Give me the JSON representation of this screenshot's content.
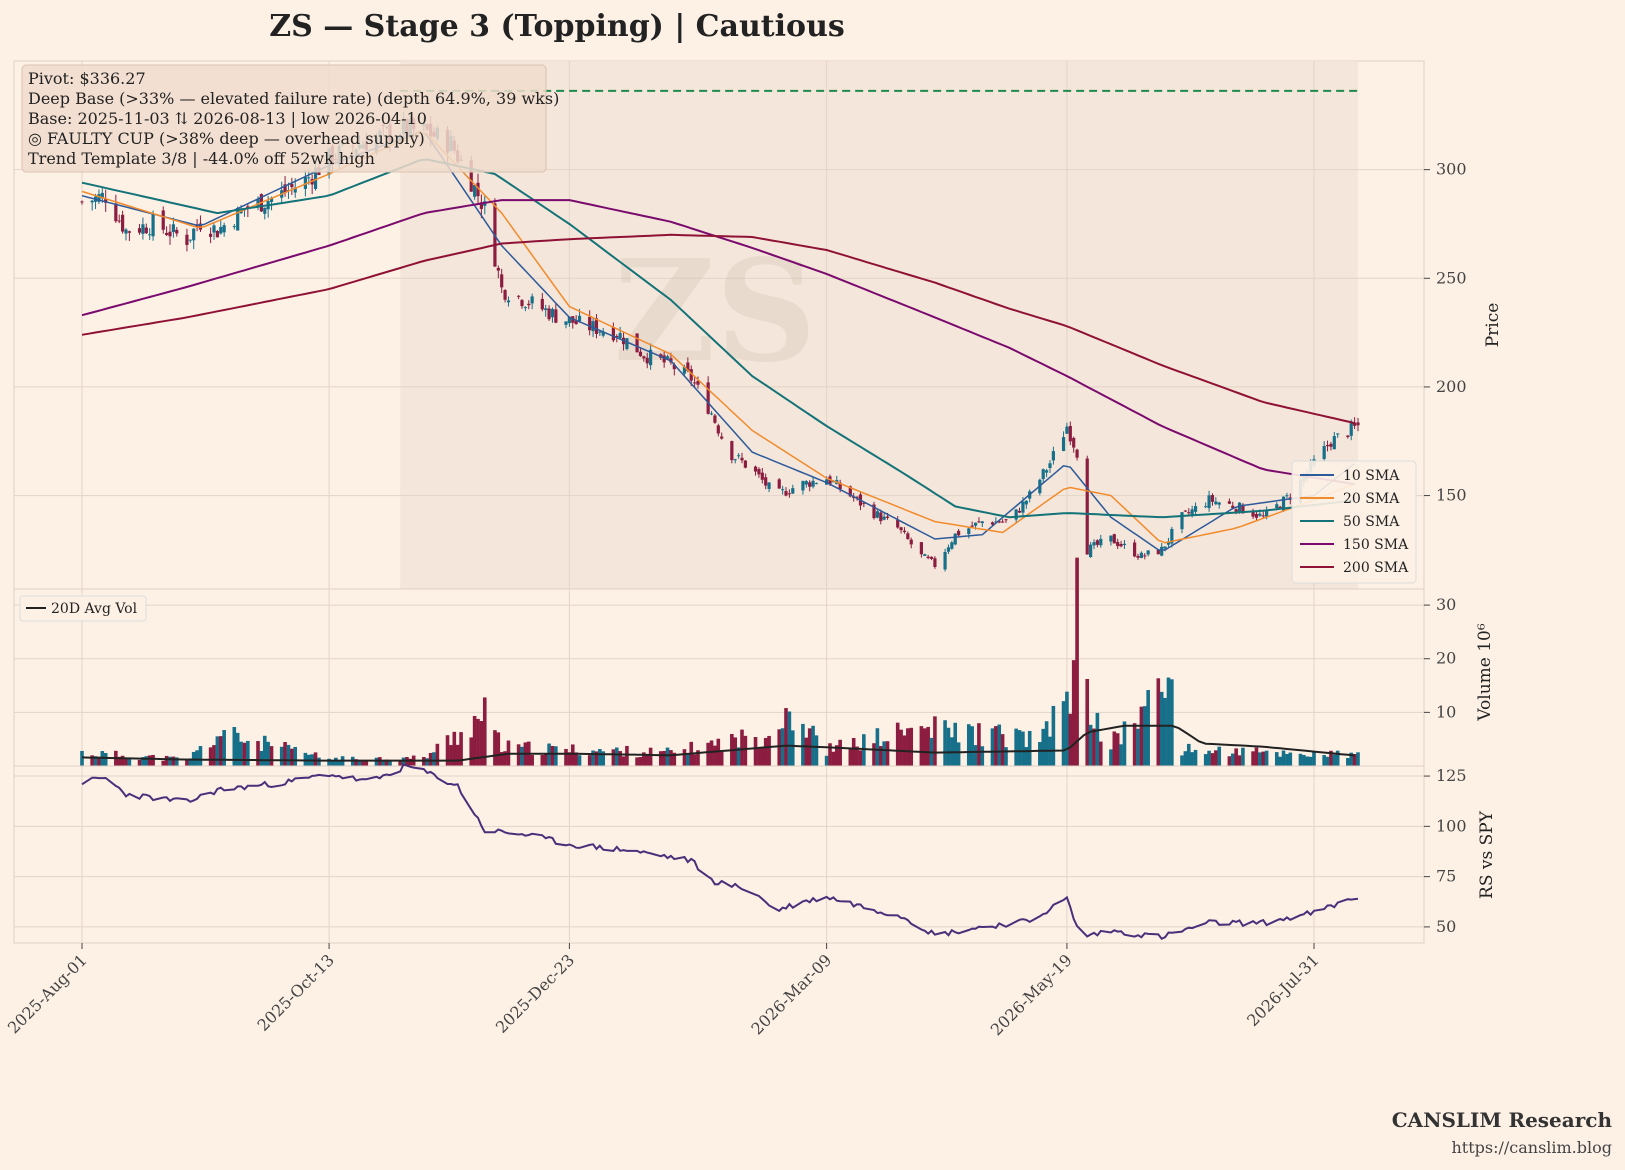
{
  "title": "ZS  —  Stage 3 (Topping)  |  Cautious",
  "watermark": "ZS",
  "colors": {
    "background": "#fdf1e6",
    "panel": "#fdf1e6",
    "base_shade": "#f3e4d8",
    "grid": "#e3d3c8",
    "up": "#17708a",
    "down": "#8c1d40",
    "pivot": "#1e8a4c",
    "sma10": "#2c5a9a",
    "sma20": "#f28b2c",
    "sma50": "#137378",
    "sma150": "#7a0a6e",
    "sma200": "#8f1236",
    "avgvol": "#222222",
    "rs": "#4a2f7a"
  },
  "info_box": {
    "lines": [
      "Pivot: $336.27",
      "Deep Base (>33% — elevated failure rate)  (depth 64.9%, 39 wks)",
      "Base: 2025-11-03 ⇅ 2026-08-13  |  low 2026-04-10",
      "◎ FAULTY CUP (>38% deep — overhead supply)",
      "Trend Template 3/8  |  -44.0% off 52wk high"
    ]
  },
  "footer": {
    "brand": "CANSLIM Research",
    "url": "https://canslim.blog"
  },
  "chart_data": [
    {
      "type": "candlestick",
      "panel": "price",
      "ylabel": "Price",
      "ylim": [
        107,
        350
      ],
      "yticks": [
        150,
        200,
        250,
        300
      ],
      "x_dates": [
        "2025-Aug-01",
        "2025-Oct-13",
        "2025-Dec-23",
        "2026-Mar-09",
        "2026-May-19",
        "2026-Jul-31"
      ],
      "pivot": 336.27,
      "base_start": "2025-11-03",
      "base_end": "2026-08-13",
      "base_low_date": "2026-04-10",
      "close_keypoints": [
        [
          "2025-08-01",
          285
        ],
        [
          "2025-08-08",
          288
        ],
        [
          "2025-08-14",
          272
        ],
        [
          "2025-08-22",
          275
        ],
        [
          "2025-09-01",
          268
        ],
        [
          "2025-09-05",
          276
        ],
        [
          "2025-09-10",
          272
        ],
        [
          "2025-09-18",
          282
        ],
        [
          "2025-09-28",
          288
        ],
        [
          "2025-10-06",
          295
        ],
        [
          "2025-10-13",
          305
        ],
        [
          "2025-10-22",
          312
        ],
        [
          "2025-11-02",
          318
        ],
        [
          "2025-11-10",
          318
        ],
        [
          "2025-11-18",
          312
        ],
        [
          "2025-11-24",
          295
        ],
        [
          "2025-11-28",
          282
        ],
        [
          "2025-12-03",
          245
        ],
        [
          "2025-12-10",
          240
        ],
        [
          "2025-12-20",
          232
        ],
        [
          "2025-12-28",
          228
        ],
        [
          "2026-01-06",
          225
        ],
        [
          "2026-01-14",
          215
        ],
        [
          "2026-01-22",
          210
        ],
        [
          "2026-01-28",
          204
        ],
        [
          "2026-02-03",
          188
        ],
        [
          "2026-02-08",
          170
        ],
        [
          "2026-02-15",
          162
        ],
        [
          "2026-02-22",
          150
        ],
        [
          "2026-03-01",
          155
        ],
        [
          "2026-03-09",
          158
        ],
        [
          "2026-03-16",
          150
        ],
        [
          "2026-03-23",
          142
        ],
        [
          "2026-03-30",
          135
        ],
        [
          "2026-04-06",
          122
        ],
        [
          "2026-04-10",
          118
        ],
        [
          "2026-04-16",
          132
        ],
        [
          "2026-04-24",
          138
        ],
        [
          "2026-05-02",
          138
        ],
        [
          "2026-05-08",
          150
        ],
        [
          "2026-05-14",
          165
        ],
        [
          "2026-05-19",
          182
        ],
        [
          "2026-05-22",
          170
        ],
        [
          "2026-05-25",
          125
        ],
        [
          "2026-06-01",
          130
        ],
        [
          "2026-06-10",
          122
        ],
        [
          "2026-06-16",
          125
        ],
        [
          "2026-06-22",
          140
        ],
        [
          "2026-06-30",
          148
        ],
        [
          "2026-07-08",
          145
        ],
        [
          "2026-07-16",
          140
        ],
        [
          "2026-07-24",
          150
        ],
        [
          "2026-07-31",
          165
        ],
        [
          "2026-08-05",
          175
        ],
        [
          "2026-08-13",
          182
        ]
      ],
      "sma": [
        {
          "name": "10 SMA",
          "key": "sma10",
          "points": [
            [
              "2025-08-01",
              288
            ],
            [
              "2025-09-05",
              274
            ],
            [
              "2025-10-13",
              302
            ],
            [
              "2025-11-10",
              318
            ],
            [
              "2025-12-03",
              265
            ],
            [
              "2025-12-23",
              232
            ],
            [
              "2026-01-22",
              212
            ],
            [
              "2026-02-15",
              170
            ],
            [
              "2026-03-09",
              156
            ],
            [
              "2026-04-10",
              130
            ],
            [
              "2026-04-24",
              132
            ],
            [
              "2026-05-19",
              165
            ],
            [
              "2026-06-01",
              140
            ],
            [
              "2026-06-16",
              124
            ],
            [
              "2026-07-08",
              145
            ],
            [
              "2026-07-31",
              150
            ],
            [
              "2026-08-13",
              166
            ]
          ]
        },
        {
          "name": "20 SMA",
          "key": "sma20",
          "points": [
            [
              "2025-08-01",
              290
            ],
            [
              "2025-09-05",
              273
            ],
            [
              "2025-10-13",
              298
            ],
            [
              "2025-11-10",
              318
            ],
            [
              "2025-12-03",
              280
            ],
            [
              "2025-12-23",
              237
            ],
            [
              "2026-01-22",
              215
            ],
            [
              "2026-02-15",
              180
            ],
            [
              "2026-03-09",
              158
            ],
            [
              "2026-04-10",
              138
            ],
            [
              "2026-04-30",
              133
            ],
            [
              "2026-05-19",
              154
            ],
            [
              "2026-06-01",
              150
            ],
            [
              "2026-06-16",
              128
            ],
            [
              "2026-07-08",
              135
            ],
            [
              "2026-07-31",
              148
            ],
            [
              "2026-08-13",
              156
            ]
          ]
        },
        {
          "name": "50 SMA",
          "key": "sma50",
          "points": [
            [
              "2025-08-01",
              294
            ],
            [
              "2025-09-10",
              280
            ],
            [
              "2025-10-13",
              288
            ],
            [
              "2025-11-10",
              305
            ],
            [
              "2025-12-01",
              298
            ],
            [
              "2025-12-23",
              275
            ],
            [
              "2026-01-22",
              240
            ],
            [
              "2026-02-15",
              205
            ],
            [
              "2026-03-09",
              182
            ],
            [
              "2026-04-01",
              160
            ],
            [
              "2026-04-16",
              145
            ],
            [
              "2026-05-02",
              140
            ],
            [
              "2026-05-19",
              142
            ],
            [
              "2026-06-16",
              140
            ],
            [
              "2026-07-16",
              143
            ],
            [
              "2026-08-13",
              148
            ]
          ]
        },
        {
          "name": "150 SMA",
          "key": "sma150",
          "points": [
            [
              "2025-08-01",
              233
            ],
            [
              "2025-09-01",
              246
            ],
            [
              "2025-10-13",
              265
            ],
            [
              "2025-11-10",
              280
            ],
            [
              "2025-12-03",
              286
            ],
            [
              "2025-12-23",
              286
            ],
            [
              "2026-01-22",
              276
            ],
            [
              "2026-02-15",
              264
            ],
            [
              "2026-03-09",
              252
            ],
            [
              "2026-04-10",
              232
            ],
            [
              "2026-05-02",
              218
            ],
            [
              "2026-05-19",
              205
            ],
            [
              "2026-06-16",
              182
            ],
            [
              "2026-07-16",
              162
            ],
            [
              "2026-08-13",
              155
            ]
          ]
        },
        {
          "name": "200 SMA",
          "key": "sma200",
          "points": [
            [
              "2025-08-01",
              224
            ],
            [
              "2025-09-01",
              232
            ],
            [
              "2025-10-13",
              245
            ],
            [
              "2025-11-10",
              258
            ],
            [
              "2025-12-03",
              266
            ],
            [
              "2025-12-23",
              268
            ],
            [
              "2026-01-22",
              270
            ],
            [
              "2026-02-15",
              269
            ],
            [
              "2026-03-09",
              263
            ],
            [
              "2026-04-10",
              248
            ],
            [
              "2026-05-02",
              236
            ],
            [
              "2026-05-19",
              228
            ],
            [
              "2026-06-16",
              210
            ],
            [
              "2026-07-16",
              193
            ],
            [
              "2026-08-13",
              183
            ]
          ]
        }
      ],
      "legend": [
        "10 SMA",
        "20 SMA",
        "50 SMA",
        "150 SMA",
        "200 SMA"
      ],
      "legend_position": "lower-right"
    },
    {
      "type": "bar",
      "panel": "volume",
      "ylabel": "Volume  10⁶",
      "ylim": [
        0,
        33
      ],
      "yticks": [
        10,
        20,
        30
      ],
      "avg_label": "20D Avg Vol",
      "legend_position": "upper-left",
      "volume_keypoints": [
        [
          "2025-08-01",
          2.5
        ],
        [
          "2025-09-01",
          1.2
        ],
        [
          "2025-09-10",
          5.5
        ],
        [
          "2025-09-11",
          6
        ],
        [
          "2025-10-13",
          1.3
        ],
        [
          "2025-11-10",
          1.5
        ],
        [
          "2025-11-28",
          9.5
        ],
        [
          "2025-12-03",
          3.5
        ],
        [
          "2025-12-23",
          3
        ],
        [
          "2026-01-22",
          2.5
        ],
        [
          "2026-02-20",
          6
        ],
        [
          "2026-02-25",
          11
        ],
        [
          "2026-03-09",
          3
        ],
        [
          "2026-04-06",
          7
        ],
        [
          "2026-05-12",
          5
        ],
        [
          "2026-05-21",
          16
        ],
        [
          "2026-05-22",
          32
        ],
        [
          "2026-05-23",
          16
        ],
        [
          "2026-05-26",
          10
        ],
        [
          "2026-06-01",
          4
        ],
        [
          "2026-06-20",
          16.5
        ],
        [
          "2026-06-22",
          3
        ],
        [
          "2026-07-16",
          2.5
        ],
        [
          "2026-08-13",
          2
        ]
      ],
      "avg_keypoints": [
        [
          "2025-08-01",
          1.6
        ],
        [
          "2025-09-01",
          1.2
        ],
        [
          "2025-10-13",
          1.0
        ],
        [
          "2025-11-20",
          1.0
        ],
        [
          "2025-12-05",
          2.3
        ],
        [
          "2025-12-23",
          2.3
        ],
        [
          "2026-01-22",
          2.0
        ],
        [
          "2026-02-25",
          3.8
        ],
        [
          "2026-03-09",
          3.5
        ],
        [
          "2026-04-10",
          2.5
        ],
        [
          "2026-05-19",
          2.9
        ],
        [
          "2026-05-25",
          6.3
        ],
        [
          "2026-06-05",
          7.5
        ],
        [
          "2026-06-20",
          7.5
        ],
        [
          "2026-06-28",
          4.2
        ],
        [
          "2026-07-16",
          3.6
        ],
        [
          "2026-08-13",
          1.9
        ]
      ]
    },
    {
      "type": "line",
      "panel": "rs",
      "ylabel": "RS vs SPY",
      "ylim": [
        42,
        130
      ],
      "yticks": [
        50,
        75,
        100,
        125
      ],
      "rs_keypoints": [
        [
          "2025-08-01",
          122
        ],
        [
          "2025-08-08",
          124
        ],
        [
          "2025-08-14",
          116
        ],
        [
          "2025-09-01",
          112
        ],
        [
          "2025-09-10",
          118
        ],
        [
          "2025-10-01",
          122
        ],
        [
          "2025-10-13",
          126
        ],
        [
          "2025-10-25",
          122
        ],
        [
          "2025-11-05",
          130
        ],
        [
          "2025-11-12",
          126
        ],
        [
          "2025-11-20",
          120
        ],
        [
          "2025-11-28",
          98
        ],
        [
          "2025-12-10",
          96
        ],
        [
          "2025-12-23",
          91
        ],
        [
          "2026-01-10",
          88
        ],
        [
          "2026-01-28",
          83
        ],
        [
          "2026-02-03",
          73
        ],
        [
          "2026-02-15",
          68
        ],
        [
          "2026-02-22",
          58
        ],
        [
          "2026-03-01",
          62
        ],
        [
          "2026-03-09",
          65
        ],
        [
          "2026-03-20",
          60
        ],
        [
          "2026-04-01",
          55
        ],
        [
          "2026-04-10",
          46
        ],
        [
          "2026-04-24",
          50
        ],
        [
          "2026-05-08",
          53
        ],
        [
          "2026-05-19",
          64
        ],
        [
          "2026-05-23",
          45
        ],
        [
          "2026-06-01",
          48
        ],
        [
          "2026-06-16",
          45
        ],
        [
          "2026-06-30",
          52
        ],
        [
          "2026-07-16",
          52
        ],
        [
          "2026-07-31",
          57
        ],
        [
          "2026-08-13",
          65
        ]
      ]
    }
  ]
}
